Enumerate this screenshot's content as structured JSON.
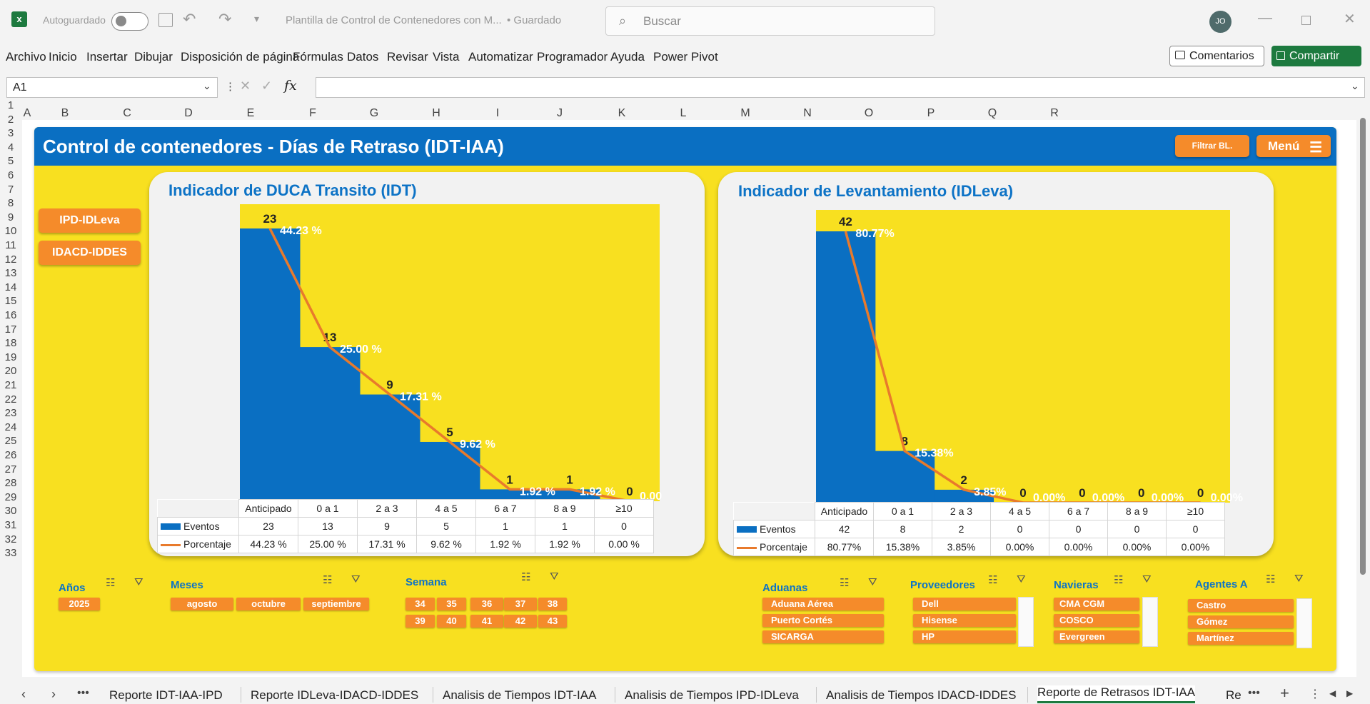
{
  "titlebar": {
    "autosave": "Autoguardado",
    "doc_title": "Plantilla de Control de Contenedores con M...",
    "saved": "• Guardado",
    "search_placeholder": "Buscar",
    "avatar": "JO"
  },
  "menu": [
    "Archivo",
    "Inicio",
    "Insertar",
    "Dibujar",
    "Disposición de página",
    "Fórmulas",
    "Datos",
    "Revisar",
    "Vista",
    "Automatizar",
    "Programador",
    "Ayuda",
    "Power Pivot"
  ],
  "comments": "Comentarios",
  "share": "Compartir",
  "namebox": "A1",
  "columns": [
    "A",
    "B",
    "C",
    "D",
    "E",
    "F",
    "G",
    "H",
    "I",
    "J",
    "K",
    "L",
    "M",
    "N",
    "O",
    "P",
    "Q",
    "R"
  ],
  "rows": [
    "1",
    "2",
    "3",
    "4",
    "5",
    "6",
    "7",
    "8",
    "9",
    "10",
    "11",
    "12",
    "13",
    "14",
    "15",
    "16",
    "17",
    "18",
    "19",
    "20",
    "21",
    "22",
    "23",
    "24",
    "25",
    "26",
    "27",
    "28",
    "29",
    "30",
    "31",
    "32",
    "33"
  ],
  "dashboard": {
    "title": "Control de contenedores - Días de Retraso (IDT-IAA)",
    "filter_btn": "Filtrar BL.",
    "menu_btn": "Menú",
    "nav_btn1": "IPD-IDLeva",
    "nav_btn2": "IDACD-IDDES"
  },
  "chart_data": [
    {
      "type": "bar",
      "title": "Indicador de DUCA Transito (IDT)",
      "categories": [
        "Anticipado",
        "0 a 1",
        "2 a 3",
        "4 a 5",
        "6 a 7",
        "8 a 9",
        "≥10"
      ],
      "series": [
        {
          "name": "Eventos",
          "values": [
            23,
            13,
            9,
            5,
            1,
            1,
            0
          ]
        },
        {
          "name": "Porcentaje",
          "values": [
            44.23,
            25.0,
            17.31,
            9.62,
            1.92,
            1.92,
            0.0
          ]
        }
      ],
      "pct_labels": [
        "44.23 %",
        "25.00 %",
        "17.31 %",
        "9.62 %",
        "1.92 %",
        "1.92 %",
        "0.00"
      ],
      "table_pct": [
        "44.23 %",
        "25.00 %",
        "17.31 %",
        "9.62 %",
        "1.92 %",
        "1.92 %",
        "0.00 %"
      ],
      "bar_color": "#0a6fc2",
      "line_color": "#e87a2c",
      "background": "#f8e020"
    },
    {
      "type": "bar",
      "title": "Indicador de Levantamiento (IDLeva)",
      "categories": [
        "Anticipado",
        "0 a 1",
        "2 a 3",
        "4 a 5",
        "6 a 7",
        "8 a 9",
        "≥10"
      ],
      "series": [
        {
          "name": "Eventos",
          "values": [
            42,
            8,
            2,
            0,
            0,
            0,
            0
          ]
        },
        {
          "name": "Porcentaje",
          "values": [
            80.77,
            15.38,
            3.85,
            0,
            0,
            0,
            0
          ]
        }
      ],
      "pct_labels": [
        "80.77%",
        "15.38%",
        "3.85%",
        "0.00%",
        "0.00%",
        "0.00%",
        "0.00%"
      ],
      "table_pct": [
        "80.77%",
        "15.38%",
        "3.85%",
        "0.00%",
        "0.00%",
        "0.00%",
        "0.00%"
      ],
      "bar_color": "#0a6fc2",
      "line_color": "#e87a2c",
      "background": "#f8e020"
    }
  ],
  "slicers": {
    "anios": {
      "title": "Años",
      "items": [
        "2025"
      ]
    },
    "meses": {
      "title": "Meses",
      "items": [
        "agosto",
        "octubre",
        "septiembre"
      ]
    },
    "semana": {
      "title": "Semana",
      "items": [
        "34",
        "35",
        "36",
        "37",
        "38",
        "39",
        "40",
        "41",
        "42",
        "43"
      ]
    },
    "aduanas": {
      "title": "Aduanas",
      "items": [
        "Aduana Aérea",
        "Puerto Cortés",
        "SICARGA"
      ]
    },
    "proveedores": {
      "title": "Proveedores",
      "items": [
        "Dell",
        "Hisense",
        "HP"
      ]
    },
    "navieras": {
      "title": "Navieras",
      "items": [
        "CMA CGM",
        "COSCO",
        "Evergreen"
      ]
    },
    "agentes": {
      "title": "Agentes A",
      "items": [
        "Castro",
        "Gómez",
        "Martínez"
      ]
    }
  },
  "tabs": [
    "Reporte IDT-IAA-IPD",
    "Reporte IDLeva-IDACD-IDDES",
    "Analisis de Tiempos IDT-IAA",
    "Analisis de Tiempos IPD-IDLeva",
    "Analisis de Tiempos IDACD-IDDES",
    "Reporte de Retrasos IDT-IAA",
    "Re"
  ]
}
